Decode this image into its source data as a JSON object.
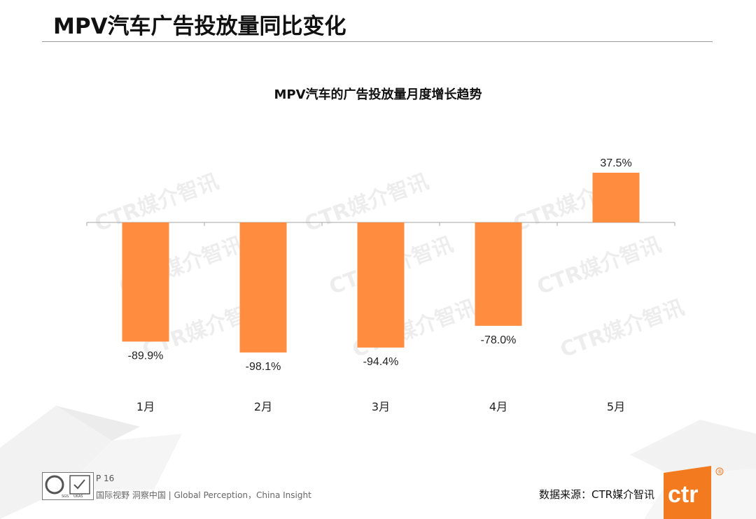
{
  "page_title": "MPV汽车广告投放量同比变化",
  "watermark_text": "CTR媒介智讯",
  "chart_data": {
    "type": "bar",
    "title": "MPV汽车的广告投放量月度增长趋势",
    "categories": [
      "1月",
      "2月",
      "3月",
      "4月",
      "5月"
    ],
    "values": [
      -89.9,
      -98.1,
      -94.4,
      -78.0,
      37.5
    ],
    "value_labels": [
      "-89.9%",
      "-98.1%",
      "-94.4%",
      "-78.0%",
      "37.5%"
    ],
    "xlabel": "",
    "ylabel": "",
    "ylim": [
      -100,
      40
    ],
    "bar_color": "#ff8c3f",
    "grid": false,
    "legend": "none"
  },
  "footer": {
    "page_number": "P 16",
    "slogan": "国际视野  洞察中国 |  Global Perception，China Insight",
    "source": "数据来源：CTR媒介智讯",
    "logo_text": "ctr",
    "logo_mark": "®",
    "cert_labels": [
      "SGS",
      "UKAS"
    ]
  },
  "colors": {
    "accent": "#f47a20",
    "bar": "#ff8c3f",
    "axis": "#a6a6a6"
  }
}
